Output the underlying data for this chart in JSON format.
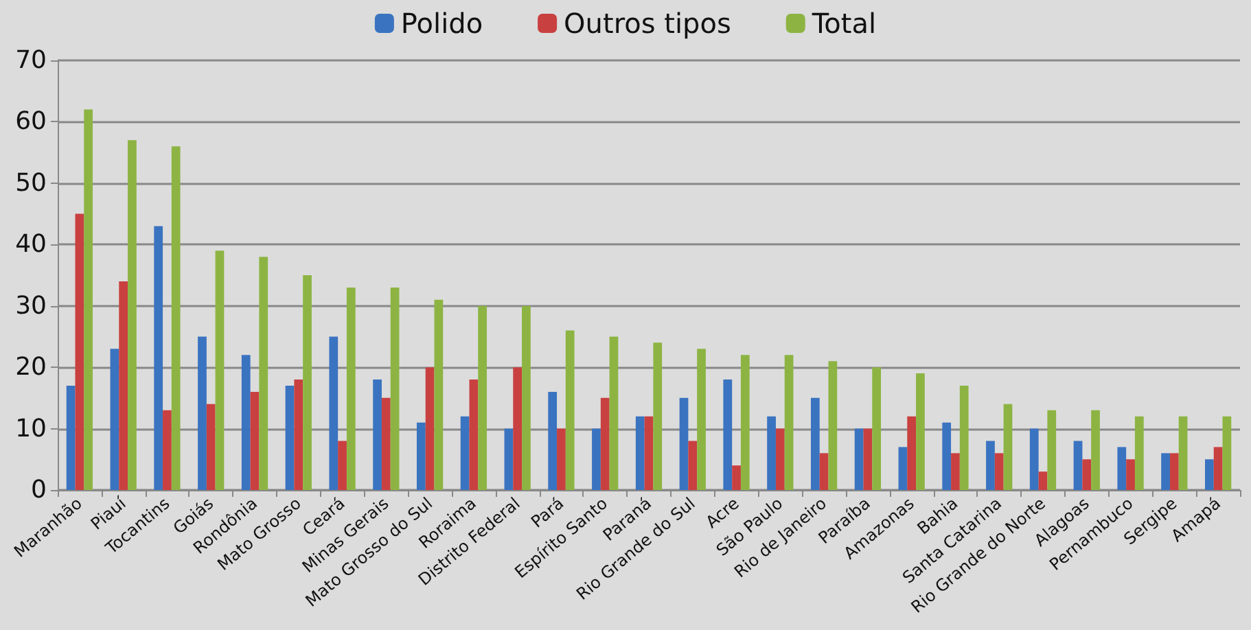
{
  "chart_data": {
    "type": "bar",
    "categories": [
      "Maranhão",
      "Piauí",
      "Tocantins",
      "Goiás",
      "Rondônia",
      "Mato Grosso",
      "Ceará",
      "Minas Gerais",
      "Mato Grosso do Sul",
      "Roraima",
      "Distrito Federal",
      "Pará",
      "Espírito Santo",
      "Paraná",
      "Rio Grande do Sul",
      "Acre",
      "São Paulo",
      "Rio de Janeiro",
      "Paraíba",
      "Amazonas",
      "Bahia",
      "Santa Catarina",
      "Rio Grande do Norte",
      "Alagoas",
      "Pernambuco",
      "Sergipe",
      "Amapá"
    ],
    "series": [
      {
        "name": "Polido",
        "color": "#3a73c0",
        "values": [
          17,
          23,
          43,
          25,
          22,
          17,
          25,
          18,
          11,
          12,
          10,
          16,
          10,
          12,
          15,
          18,
          12,
          15,
          10,
          7,
          11,
          8,
          10,
          8,
          7,
          6,
          5
        ]
      },
      {
        "name": "Outros tipos",
        "color": "#c94040",
        "values": [
          45,
          34,
          13,
          14,
          16,
          18,
          8,
          15,
          20,
          18,
          20,
          10,
          15,
          12,
          8,
          4,
          10,
          6,
          10,
          12,
          6,
          6,
          3,
          5,
          5,
          6,
          7
        ]
      },
      {
        "name": "Total",
        "color": "#8db443",
        "values": [
          62,
          57,
          56,
          39,
          38,
          35,
          33,
          33,
          31,
          30,
          30,
          26,
          25,
          24,
          23,
          22,
          22,
          21,
          20,
          19,
          17,
          14,
          13,
          13,
          12,
          12,
          12
        ]
      }
    ],
    "ylim": [
      0,
      70
    ],
    "yticks": [
      0,
      10,
      20,
      30,
      40,
      50,
      60,
      70
    ],
    "grid": "y",
    "legend": "top"
  }
}
